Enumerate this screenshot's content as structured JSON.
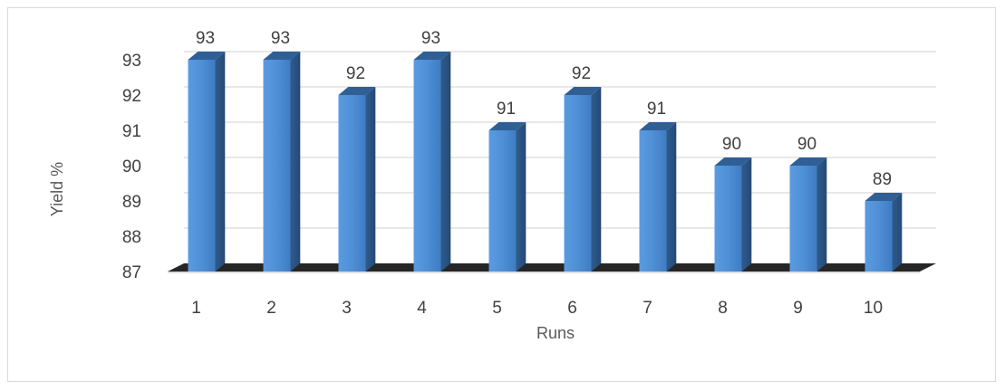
{
  "chart_data": {
    "type": "bar",
    "title": "",
    "xlabel": "Runs",
    "ylabel": "Yield %",
    "categories": [
      "1",
      "2",
      "3",
      "4",
      "5",
      "6",
      "7",
      "8",
      "9",
      "10"
    ],
    "values": [
      93,
      93,
      92,
      93,
      91,
      92,
      91,
      90,
      90,
      89
    ],
    "ylim": [
      87,
      93
    ],
    "yticks": [
      "87",
      "88",
      "89",
      "90",
      "91",
      "92",
      "93"
    ],
    "grid": true,
    "legend": "none",
    "style": "3d-column",
    "colors": {
      "bar_front": "#4f8fd6",
      "bar_side": "#2f5f95",
      "bar_top": "#7eaee3",
      "gridline": "#d9d9d9",
      "floor": "#262626"
    }
  }
}
